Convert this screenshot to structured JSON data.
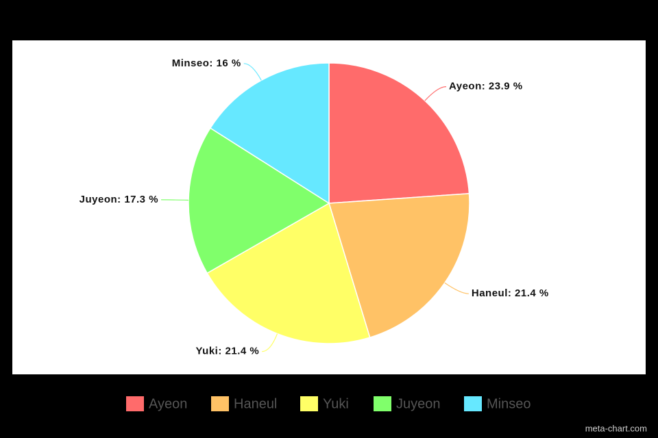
{
  "chart_data": {
    "type": "pie",
    "categories": [
      "Ayeon",
      "Haneul",
      "Yuki",
      "Juyeon",
      "Minseo"
    ],
    "values": [
      23.9,
      21.4,
      21.4,
      17.3,
      16
    ],
    "value_labels": [
      "Ayeon: 23.9 %",
      "Haneul: 21.4 %",
      "Yuki: 21.4 %",
      "Juyeon: 17.3 %",
      "Minseo: 16 %"
    ],
    "colors": [
      "#ff6b6b",
      "#ffc266",
      "#ffff66",
      "#80ff6b",
      "#66e8ff"
    ],
    "legend": "bottom",
    "credit": "meta-chart.com"
  }
}
